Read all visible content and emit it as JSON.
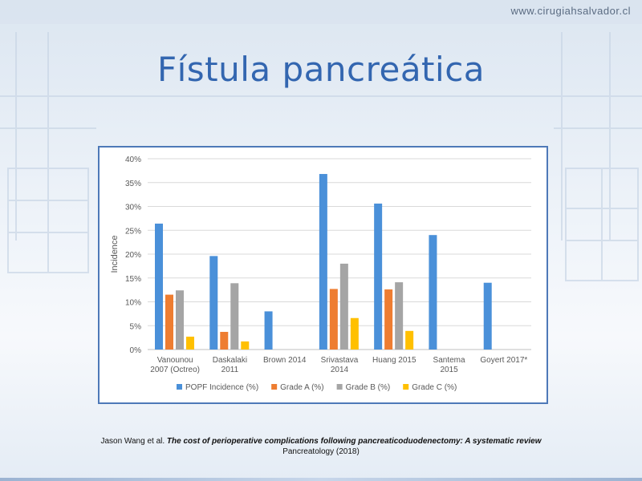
{
  "slide": {
    "website": "www.cirugiahsalvador.cl",
    "title": "Fístula pancreática"
  },
  "citation": {
    "authors": "Jason Wang et al. ",
    "paper_title": "The cost of perioperative complications following pancreaticoduodenectomy: A systematic review",
    "journal": "Pancreatology (2018)"
  },
  "colors": {
    "series": [
      "#4a90d9",
      "#ee7d31",
      "#a5a5a5",
      "#ffc000"
    ],
    "frame": "#4e79b8",
    "title": "#3366b0"
  },
  "chart_data": {
    "type": "bar",
    "ylabel": "Incidence",
    "xlabel": "",
    "ylim": [
      0,
      40
    ],
    "y_ticks": [
      "0%",
      "5%",
      "10%",
      "15%",
      "20%",
      "25%",
      "30%",
      "35%",
      "40%"
    ],
    "grid": true,
    "legend_position": "bottom",
    "categories": [
      [
        "Vanounou",
        "2007 (Octreo)"
      ],
      [
        "Daskalaki",
        "2011"
      ],
      [
        "Brown 2014"
      ],
      [
        "Srivastava",
        "2014"
      ],
      [
        "Huang 2015"
      ],
      [
        "Santema",
        "2015"
      ],
      [
        "Goyert 2017*"
      ]
    ],
    "series": [
      {
        "name": "POPF Incidence (%)",
        "values": [
          26.4,
          19.6,
          8.0,
          36.8,
          30.6,
          24.0,
          14.0
        ]
      },
      {
        "name": "Grade A (%)",
        "values": [
          11.5,
          3.7,
          null,
          12.7,
          12.6,
          null,
          null
        ]
      },
      {
        "name": "Grade B (%)",
        "values": [
          12.4,
          13.9,
          null,
          18.0,
          14.1,
          null,
          null
        ]
      },
      {
        "name": "Grade C (%)",
        "values": [
          2.7,
          1.7,
          null,
          6.6,
          3.9,
          null,
          null
        ]
      }
    ]
  }
}
